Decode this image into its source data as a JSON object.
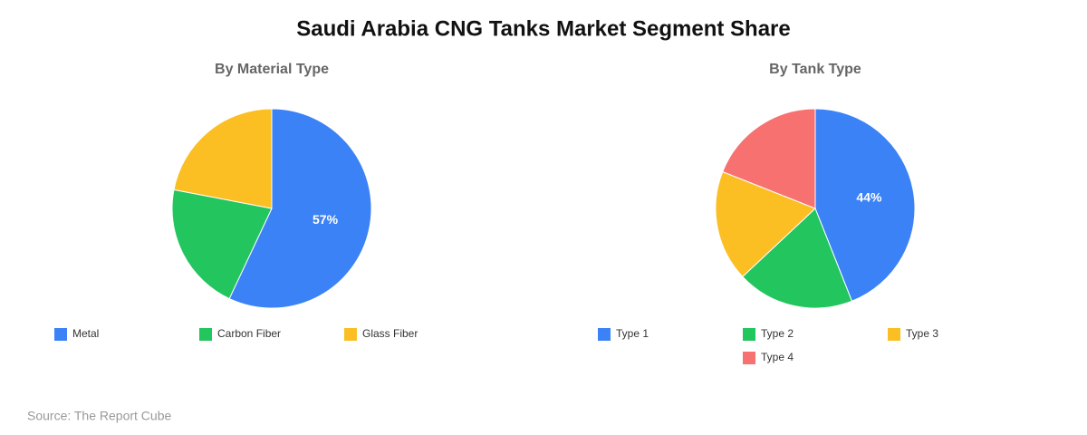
{
  "title": "Saudi Arabia CNG Tanks Market Segment Share",
  "source": "Source: The Report Cube",
  "chart_data": [
    {
      "type": "pie",
      "title": "By Material Type",
      "categories": [
        "Metal",
        "Carbon Fiber",
        "Glass Fiber"
      ],
      "values": [
        57,
        21,
        22
      ],
      "value_labels": [
        "57%",
        null,
        null
      ],
      "colors": [
        "#3b82f6",
        "#22c55e",
        "#fbbf24"
      ]
    },
    {
      "type": "pie",
      "title": "By Tank Type",
      "categories": [
        "Type 1",
        "Type 2",
        "Type 3",
        "Type 4"
      ],
      "values": [
        44,
        19,
        18,
        19
      ],
      "value_labels": [
        "44%",
        null,
        null,
        null
      ],
      "colors": [
        "#3b82f6",
        "#22c55e",
        "#fbbf24",
        "#f87171"
      ]
    }
  ]
}
